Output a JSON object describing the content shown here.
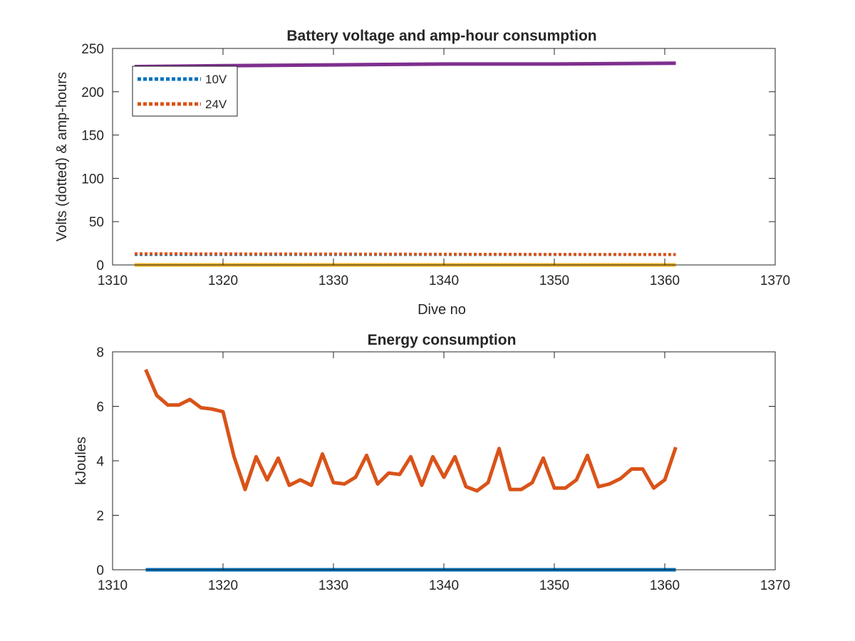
{
  "chart_data": [
    {
      "type": "line",
      "title": "Battery voltage and amp-hour consumption",
      "xlabel": "Dive no",
      "ylabel": "Volts (dotted) & amp-hours",
      "xlim": [
        1310,
        1370
      ],
      "ylim": [
        0,
        250
      ],
      "xticks": [
        1310,
        1320,
        1330,
        1340,
        1350,
        1360,
        1370
      ],
      "yticks": [
        0,
        50,
        100,
        150,
        200,
        250
      ],
      "grid": false,
      "legend_position": "top-left",
      "series": [
        {
          "name": "10V",
          "style": "dotted",
          "color": "#0072BD",
          "x": [
            1312,
            1361
          ],
          "y": [
            12,
            12
          ]
        },
        {
          "name": "24V",
          "style": "dotted",
          "color": "#D95319",
          "x": [
            1312,
            1361
          ],
          "y": [
            13,
            12
          ]
        },
        {
          "style": "solid",
          "color": "#EDB120",
          "x": [
            1312,
            1361
          ],
          "y": [
            0,
            0
          ]
        },
        {
          "style": "solid",
          "color": "#7E2F8E",
          "x": [
            1312,
            1320,
            1330,
            1340,
            1350,
            1361
          ],
          "y": [
            229,
            230,
            231,
            232,
            232,
            233
          ]
        }
      ]
    },
    {
      "type": "line",
      "title": "Energy consumption",
      "xlabel": "",
      "ylabel": "kJoules",
      "xlim": [
        1310,
        1370
      ],
      "ylim": [
        0,
        8
      ],
      "xticks": [
        1310,
        1320,
        1330,
        1340,
        1350,
        1360,
        1370
      ],
      "yticks": [
        0,
        2,
        4,
        6,
        8
      ],
      "grid": false,
      "series": [
        {
          "style": "solid",
          "color": "#0072BD",
          "x": [
            1313,
            1361
          ],
          "y": [
            0,
            0
          ]
        },
        {
          "style": "solid",
          "color": "#D95319",
          "x": [
            1313,
            1314,
            1315,
            1316,
            1317,
            1318,
            1319,
            1320,
            1321,
            1322,
            1323,
            1324,
            1325,
            1326,
            1327,
            1328,
            1329,
            1330,
            1331,
            1332,
            1333,
            1334,
            1335,
            1336,
            1337,
            1338,
            1339,
            1340,
            1341,
            1342,
            1343,
            1344,
            1345,
            1346,
            1347,
            1348,
            1349,
            1350,
            1351,
            1352,
            1353,
            1354,
            1355,
            1356,
            1357,
            1358,
            1359,
            1360,
            1361
          ],
          "y": [
            7.35,
            6.4,
            6.05,
            6.05,
            6.25,
            5.95,
            5.9,
            5.8,
            4.15,
            2.95,
            4.15,
            3.3,
            4.1,
            3.1,
            3.3,
            3.1,
            4.25,
            3.2,
            3.15,
            3.4,
            4.2,
            3.15,
            3.55,
            3.5,
            4.15,
            3.1,
            4.15,
            3.4,
            4.15,
            3.05,
            2.9,
            3.2,
            4.45,
            2.95,
            2.95,
            3.2,
            4.1,
            3.0,
            3.0,
            3.3,
            4.2,
            3.05,
            3.15,
            3.35,
            3.7,
            3.7,
            3.0,
            3.3,
            4.5
          ]
        }
      ]
    }
  ]
}
